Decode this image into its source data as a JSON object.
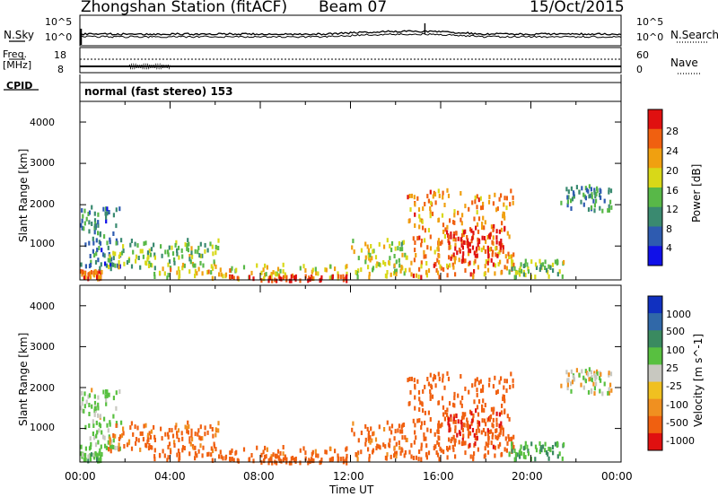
{
  "header": {
    "station": "Zhongshan Station (fitACF)",
    "beam": "Beam 07",
    "date": "15/Oct/2015"
  },
  "noise_panel": {
    "left_label": "N.Sky",
    "right_label": "N.Search",
    "left_ticks": [
      "10^5",
      "10^0"
    ],
    "right_ticks": [
      "10^5",
      "10^0"
    ]
  },
  "freq_panel": {
    "left_label_line1": "Freq.",
    "left_label_line2": "[MHz]",
    "right_label": "Nave",
    "left_ticks": [
      "18",
      "8"
    ],
    "right_ticks": [
      "60",
      "0"
    ]
  },
  "cpid": {
    "label": "CPID",
    "value": "normal (fast stereo) 153"
  },
  "power_panel": {
    "ylabel": "Slant Range [km]",
    "yticks": [
      "4000",
      "3000",
      "2000",
      "1000"
    ],
    "colorbar_label": "Power [dB]",
    "colorbar_ticks": [
      "28",
      "24",
      "20",
      "16",
      "12",
      "8",
      "4"
    ],
    "colors": [
      "#1010e8",
      "#2e5bb0",
      "#3a8a70",
      "#58b848",
      "#d8d818",
      "#f0a010",
      "#f06010",
      "#e01010"
    ]
  },
  "velocity_panel": {
    "ylabel": "Slant Range [km]",
    "yticks": [
      "4000",
      "3000",
      "2000",
      "1000"
    ],
    "colorbar_label": "Velocity [m s^-1]",
    "colorbar_ticks": [
      "1000",
      "500",
      "100",
      "25",
      "-25",
      "-100",
      "-500",
      "-1000"
    ],
    "colors": [
      "#1030c0",
      "#3068a8",
      "#3a8a60",
      "#58c040",
      "#c8c8c0",
      "#f0c020",
      "#f09020",
      "#f06010",
      "#e01010"
    ]
  },
  "xaxis": {
    "ticks": [
      "00:00",
      "04:00",
      "08:00",
      "12:00",
      "16:00",
      "20:00",
      "00:00"
    ],
    "label": "Time UT"
  },
  "chart_data": {
    "type": "heatmap",
    "title": "Zhongshan Station (fitACF) Beam 07 15/Oct/2015",
    "xlabel": "Time UT",
    "ylabel": "Slant Range [km]",
    "xlim": [
      "00:00",
      "24:00"
    ],
    "ylim": [
      180,
      4500
    ],
    "power_scale": {
      "label": "Power [dB]",
      "range": [
        0,
        30
      ]
    },
    "velocity_scale": {
      "label": "Velocity [m s^-1]",
      "range": [
        -1000,
        1000
      ]
    },
    "scatter_regions": [
      {
        "t_start": 0.0,
        "t_end": 1.0,
        "r_start": 250,
        "r_end": 450,
        "power": 24,
        "velocity": 60
      },
      {
        "t_start": 0.0,
        "t_end": 1.8,
        "r_start": 500,
        "r_end": 2000,
        "power": 8,
        "velocity": 30
      },
      {
        "t_start": 1.2,
        "t_end": 6.2,
        "r_start": 500,
        "r_end": 1200,
        "power": 14,
        "velocity": -150
      },
      {
        "t_start": 3.0,
        "t_end": 11.8,
        "r_start": 250,
        "r_end": 600,
        "power": 18,
        "velocity": -200
      },
      {
        "t_start": 6.0,
        "t_end": 11.8,
        "r_start": 200,
        "r_end": 320,
        "power": 28,
        "velocity": -300
      },
      {
        "t_start": 12.0,
        "t_end": 14.5,
        "r_start": 300,
        "r_end": 1200,
        "power": 16,
        "velocity": -150
      },
      {
        "t_start": 14.5,
        "t_end": 19.2,
        "r_start": 300,
        "r_end": 2400,
        "power": 22,
        "velocity": -250
      },
      {
        "t_start": 16.2,
        "t_end": 18.8,
        "r_start": 600,
        "r_end": 1500,
        "power": 28,
        "velocity": -500
      },
      {
        "t_start": 19.0,
        "t_end": 21.5,
        "r_start": 250,
        "r_end": 700,
        "power": 14,
        "velocity": 80
      },
      {
        "t_start": 21.3,
        "t_end": 23.6,
        "r_start": 1900,
        "r_end": 2500,
        "power": 10,
        "velocity": 0
      }
    ]
  }
}
